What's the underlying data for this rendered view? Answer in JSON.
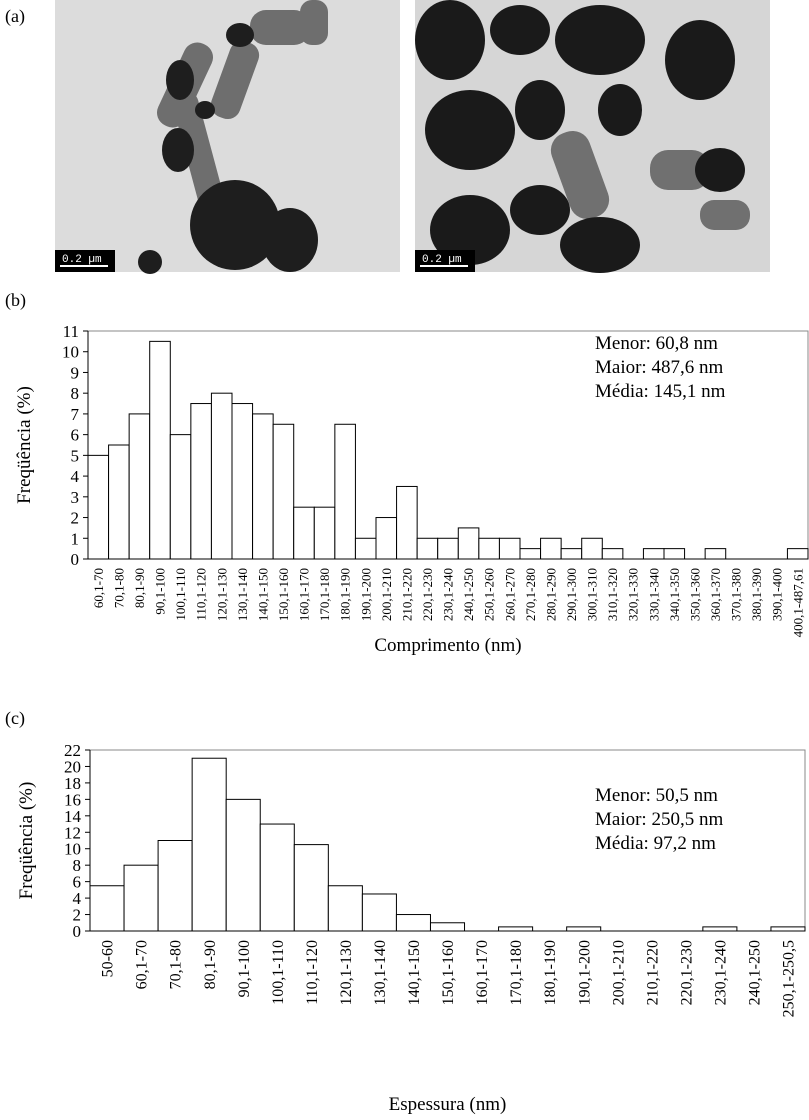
{
  "panel_labels": [
    "(a)",
    "(b)",
    "(c)"
  ],
  "scale_bars": [
    "0.2 µm",
    "0.2 µm"
  ],
  "chart_data": [
    {
      "type": "bar",
      "x_label": "Comprimento (nm)",
      "y_label": "Freqüência (%)",
      "annotations": [
        "Menor: 60,8 nm",
        "Maior: 487,6 nm",
        "Média: 145,1 nm"
      ],
      "categories": [
        "60,1-70",
        "70,1-80",
        "80,1-90",
        "90,1-100",
        "100,1-110",
        "110,1-120",
        "120,1-130",
        "130,1-140",
        "140,1-150",
        "150,1-160",
        "160,1-170",
        "170,1-180",
        "180,1-190",
        "190,1-200",
        "200,1-210",
        "210,1-220",
        "220,1-230",
        "230,1-240",
        "240,1-250",
        "250,1-260",
        "260,1-270",
        "270,1-280",
        "280,1-290",
        "290,1-300",
        "300,1-310",
        "310,1-320",
        "320,1-330",
        "330,1-340",
        "340,1-350",
        "350,1-360",
        "360,1-370",
        "370,1-380",
        "380,1-390",
        "390,1-400",
        "400,1-487,61"
      ],
      "values": [
        5,
        5.5,
        7,
        10.5,
        6,
        7.5,
        8,
        7.5,
        7,
        6.5,
        2.5,
        2.5,
        6.5,
        1,
        2,
        3.5,
        1,
        1,
        1.5,
        1,
        1,
        0.5,
        1,
        0.5,
        1,
        0.5,
        0,
        0.5,
        0.5,
        0,
        0.5,
        0,
        0,
        0,
        0.5
      ],
      "color": "#ffffff",
      "edge_color": "#000000",
      "ylim": [
        0,
        11
      ],
      "yticks": [
        0,
        1,
        2,
        3,
        4,
        5,
        6,
        7,
        8,
        9,
        10,
        11
      ],
      "grid": false
    },
    {
      "type": "bar",
      "x_label": "Espessura (nm)",
      "y_label": "Freqüência (%)",
      "annotations": [
        "Menor: 50,5 nm",
        "Maior: 250,5 nm",
        "Média: 97,2  nm"
      ],
      "categories": [
        "50-60",
        "60,1-70",
        "70,1-80",
        "80,1-90",
        "90,1-100",
        "100,1-110",
        "110,1-120",
        "120,1-130",
        "130,1-140",
        "140,1-150",
        "150,1-160",
        "160,1-170",
        "170,1-180",
        "180,1-190",
        "190,1-200",
        "200,1-210",
        "210,1-220",
        "220,1-230",
        "230,1-240",
        "240,1-250",
        "250,1-250,5"
      ],
      "values": [
        5.5,
        8,
        11,
        21,
        16,
        13,
        10.5,
        5.5,
        4.5,
        2,
        1,
        0,
        0.5,
        0,
        0.5,
        0,
        0,
        0,
        0.5,
        0,
        0.5
      ],
      "color": "#ffffff",
      "edge_color": "#000000",
      "ylim": [
        0,
        22
      ],
      "yticks": [
        0,
        2,
        4,
        6,
        8,
        10,
        12,
        14,
        16,
        18,
        20,
        22
      ],
      "grid": false
    }
  ]
}
